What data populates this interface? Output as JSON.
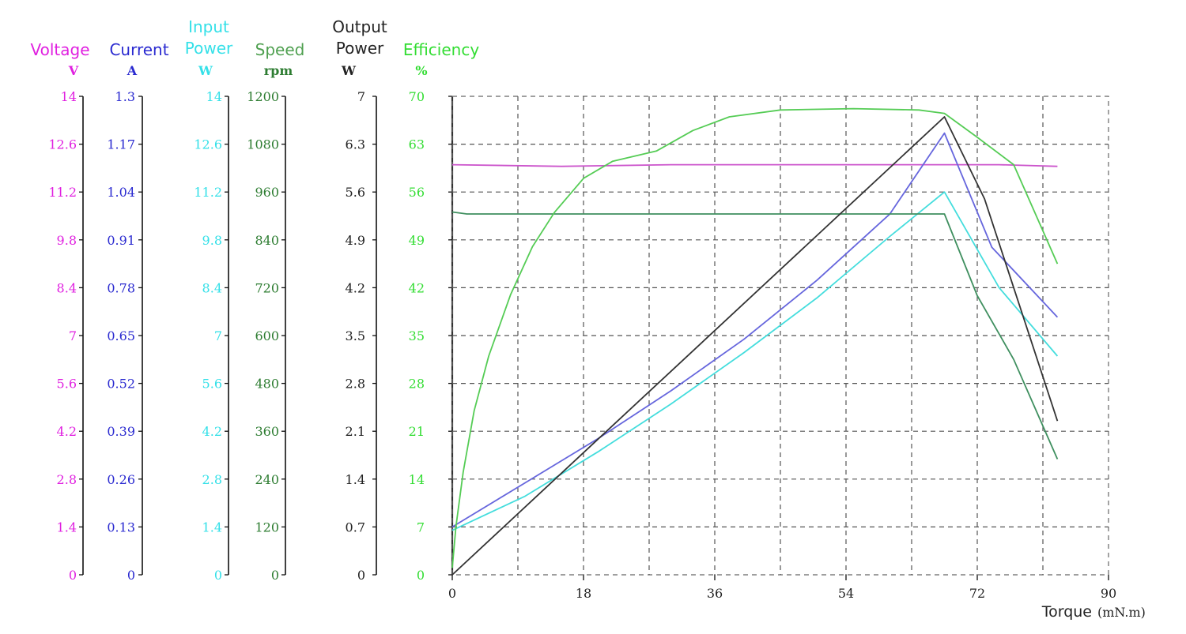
{
  "chart_data": {
    "type": "line",
    "x_axis": {
      "title": "Torque",
      "unit": "(mN.m)",
      "range": [
        0,
        90
      ],
      "ticks": [
        "0",
        "18",
        "36",
        "54",
        "72",
        "90"
      ]
    },
    "y_axes": [
      {
        "id": "voltage",
        "title_lines": [
          "Voltage"
        ],
        "unit": "V",
        "color": "#e020e0",
        "range": [
          0,
          14
        ],
        "ticks": [
          "0",
          "1.4",
          "2.8",
          "4.2",
          "5.6",
          "7",
          "8.4",
          "9.8",
          "11.2",
          "12.6",
          "14"
        ]
      },
      {
        "id": "current",
        "title_lines": [
          "Current"
        ],
        "unit": "A",
        "color": "#2a2ad0",
        "range": [
          0,
          1.3
        ],
        "ticks": [
          "0",
          "0.13",
          "0.26",
          "0.39",
          "0.52",
          "0.65",
          "0.78",
          "0.91",
          "1.04",
          "1.17",
          "1.3"
        ]
      },
      {
        "id": "input_power",
        "title_lines": [
          "Input",
          "Power"
        ],
        "unit": "W",
        "color": "#34e0e8",
        "range": [
          0,
          14
        ],
        "ticks": [
          "0",
          "1.4",
          "2.8",
          "4.2",
          "5.6",
          "7",
          "8.4",
          "9.8",
          "11.2",
          "12.6",
          "14"
        ]
      },
      {
        "id": "speed",
        "title_lines": [
          "Speed"
        ],
        "unit": "rpm",
        "color": "#2e7d32",
        "title_color": "#4fa050",
        "range": [
          0,
          1200
        ],
        "ticks": [
          "0",
          "120",
          "240",
          "360",
          "480",
          "600",
          "720",
          "840",
          "960",
          "1080",
          "1200"
        ]
      },
      {
        "id": "output_power",
        "title_lines": [
          "Output",
          "Power"
        ],
        "unit": "W",
        "color": "#222222",
        "range": [
          0,
          7
        ],
        "ticks": [
          "0",
          "0.7",
          "1.4",
          "2.1",
          "2.8",
          "3.5",
          "4.2",
          "4.9",
          "5.6",
          "6.3",
          "7"
        ]
      },
      {
        "id": "efficiency",
        "title_lines": [
          "Efficiency"
        ],
        "unit": "%",
        "color": "#33dd33",
        "range": [
          0,
          70
        ],
        "ticks": [
          "0",
          "7",
          "14",
          "21",
          "28",
          "35",
          "42",
          "49",
          "56",
          "63",
          "70"
        ]
      }
    ],
    "grid": true,
    "series": [
      {
        "axis": "voltage",
        "color": "#cc55cc",
        "points": [
          [
            0,
            12.0
          ],
          [
            15,
            11.95
          ],
          [
            30,
            12.0
          ],
          [
            50,
            12.0
          ],
          [
            67.5,
            12.0
          ],
          [
            75,
            12.0
          ],
          [
            83,
            11.95
          ]
        ]
      },
      {
        "axis": "current",
        "color": "#6666dd",
        "points": [
          [
            0,
            0.13
          ],
          [
            10,
            0.25
          ],
          [
            20,
            0.37
          ],
          [
            30,
            0.5
          ],
          [
            40,
            0.64
          ],
          [
            50,
            0.8
          ],
          [
            60,
            0.98
          ],
          [
            67.5,
            1.2
          ],
          [
            74,
            0.89
          ],
          [
            83,
            0.7
          ]
        ]
      },
      {
        "axis": "input_power",
        "color": "#44dddd",
        "points": [
          [
            0,
            1.3
          ],
          [
            10,
            2.3
          ],
          [
            20,
            3.6
          ],
          [
            30,
            5.0
          ],
          [
            40,
            6.5
          ],
          [
            50,
            8.1
          ],
          [
            60,
            9.9
          ],
          [
            67.5,
            11.2
          ],
          [
            75,
            8.4
          ],
          [
            83,
            6.4
          ]
        ]
      },
      {
        "axis": "speed",
        "color": "#3f8f5f",
        "points": [
          [
            0,
            910
          ],
          [
            2,
            905
          ],
          [
            10,
            905
          ],
          [
            30,
            905
          ],
          [
            50,
            905
          ],
          [
            67.5,
            905
          ],
          [
            72,
            700
          ],
          [
            77,
            540
          ],
          [
            83,
            290
          ]
        ]
      },
      {
        "axis": "output_power",
        "color": "#333333",
        "points": [
          [
            0,
            0
          ],
          [
            67.5,
            6.7
          ],
          [
            73,
            5.5
          ],
          [
            83,
            2.25
          ]
        ]
      },
      {
        "axis": "efficiency",
        "color": "#55cc55",
        "points": [
          [
            0,
            1
          ],
          [
            0.5,
            7
          ],
          [
            1.5,
            15
          ],
          [
            3,
            24
          ],
          [
            5,
            32
          ],
          [
            8,
            41
          ],
          [
            11,
            48
          ],
          [
            14,
            53
          ],
          [
            18,
            58
          ],
          [
            22,
            60.5
          ],
          [
            28,
            62
          ],
          [
            33,
            65
          ],
          [
            38,
            67
          ],
          [
            45,
            68
          ],
          [
            55,
            68.2
          ],
          [
            64,
            68
          ],
          [
            67.5,
            67.5
          ],
          [
            72,
            64
          ],
          [
            77,
            60
          ],
          [
            83,
            45.5
          ]
        ]
      }
    ]
  }
}
